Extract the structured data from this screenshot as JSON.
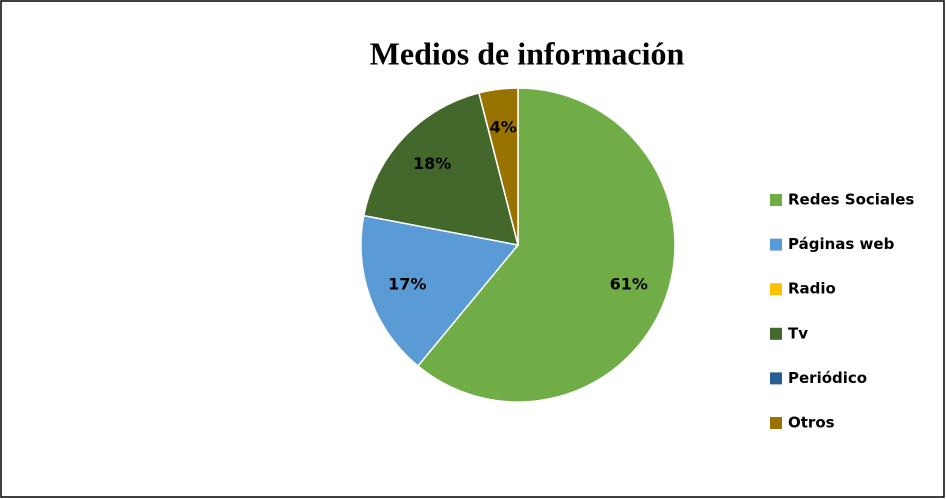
{
  "chart_data": {
    "type": "pie",
    "title": "Medios de información",
    "categories": [
      "Redes Sociales",
      "Páginas web",
      "Radio",
      "Tv",
      "Periódico",
      "Otros"
    ],
    "values": [
      61,
      17,
      0,
      18,
      0,
      4
    ],
    "value_labels": [
      "61%",
      "17%",
      null,
      "18%",
      null,
      "4%"
    ],
    "colors": [
      "#70ad47",
      "#5b9bd5",
      "#ffc000",
      "#43682b",
      "#255e91",
      "#997300"
    ],
    "legend": "right"
  }
}
